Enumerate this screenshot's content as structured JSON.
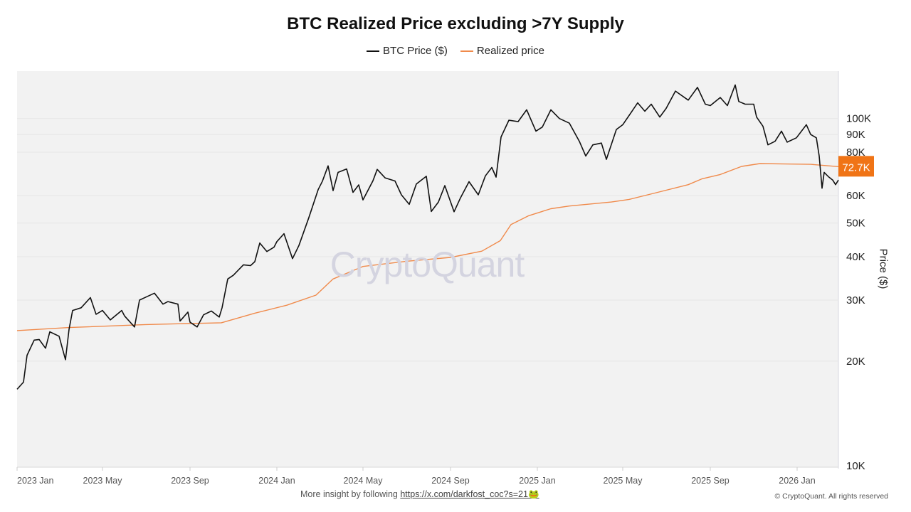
{
  "chart_data": {
    "type": "line",
    "title": "BTC Realized Price excluding >7Y Supply",
    "ylabel": "Price ($)",
    "yscale": "log",
    "ylim": [
      9900,
      137000
    ],
    "xlim": [
      "2023-01-01",
      "2026-02-28"
    ],
    "grid": "horizontal",
    "legend_position": "top",
    "y_ticks": [
      {
        "value": 10000,
        "label": "10K"
      },
      {
        "value": 20000,
        "label": "20K"
      },
      {
        "value": 30000,
        "label": "30K"
      },
      {
        "value": 40000,
        "label": "40K"
      },
      {
        "value": 50000,
        "label": "50K"
      },
      {
        "value": 60000,
        "label": "60K"
      },
      {
        "value": 80000,
        "label": "80K"
      },
      {
        "value": 90000,
        "label": "90K"
      },
      {
        "value": 100000,
        "label": "100K"
      }
    ],
    "x_ticks": [
      {
        "date": "2023-01-01",
        "label": "2023 Jan"
      },
      {
        "date": "2023-05-01",
        "label": "2023 May"
      },
      {
        "date": "2023-09-01",
        "label": "2023 Sep"
      },
      {
        "date": "2024-01-01",
        "label": "2024 Jan"
      },
      {
        "date": "2024-05-01",
        "label": "2024 May"
      },
      {
        "date": "2024-09-01",
        "label": "2024 Sep"
      },
      {
        "date": "2025-01-01",
        "label": "2025 Jan"
      },
      {
        "date": "2025-05-01",
        "label": "2025 May"
      },
      {
        "date": "2025-09-01",
        "label": "2025 Sep"
      },
      {
        "date": "2026-01-01",
        "label": "2026 Jan"
      }
    ],
    "last_value_label": "72.7K",
    "series": [
      {
        "name": "BTC Price ($)",
        "color": "#111111",
        "points": [
          [
            "2023-01-01",
            16600
          ],
          [
            "2023-01-10",
            17400
          ],
          [
            "2023-01-15",
            20800
          ],
          [
            "2023-01-25",
            23000
          ],
          [
            "2023-02-01",
            23100
          ],
          [
            "2023-02-10",
            21800
          ],
          [
            "2023-02-16",
            24300
          ],
          [
            "2023-03-01",
            23600
          ],
          [
            "2023-03-10",
            20200
          ],
          [
            "2023-03-15",
            24700
          ],
          [
            "2023-03-20",
            28000
          ],
          [
            "2023-04-01",
            28500
          ],
          [
            "2023-04-14",
            30500
          ],
          [
            "2023-04-22",
            27300
          ],
          [
            "2023-05-01",
            28000
          ],
          [
            "2023-05-12",
            26300
          ],
          [
            "2023-05-28",
            28000
          ],
          [
            "2023-06-01",
            27000
          ],
          [
            "2023-06-15",
            25100
          ],
          [
            "2023-06-22",
            30000
          ],
          [
            "2023-07-01",
            30600
          ],
          [
            "2023-07-13",
            31400
          ],
          [
            "2023-07-25",
            29200
          ],
          [
            "2023-08-01",
            29700
          ],
          [
            "2023-08-15",
            29200
          ],
          [
            "2023-08-18",
            26100
          ],
          [
            "2023-08-29",
            27700
          ],
          [
            "2023-09-01",
            25900
          ],
          [
            "2023-09-11",
            25100
          ],
          [
            "2023-09-20",
            27200
          ],
          [
            "2023-10-01",
            27900
          ],
          [
            "2023-10-12",
            26800
          ],
          [
            "2023-10-16",
            28500
          ],
          [
            "2023-10-24",
            34500
          ],
          [
            "2023-11-01",
            35400
          ],
          [
            "2023-11-15",
            37900
          ],
          [
            "2023-11-25",
            37700
          ],
          [
            "2023-12-01",
            38700
          ],
          [
            "2023-12-08",
            43800
          ],
          [
            "2023-12-18",
            41400
          ],
          [
            "2023-12-28",
            42600
          ],
          [
            "2024-01-01",
            44200
          ],
          [
            "2024-01-11",
            46600
          ],
          [
            "2024-01-23",
            39500
          ],
          [
            "2024-02-01",
            43100
          ],
          [
            "2024-02-15",
            51900
          ],
          [
            "2024-02-28",
            62400
          ],
          [
            "2024-03-05",
            66000
          ],
          [
            "2024-03-13",
            73100
          ],
          [
            "2024-03-20",
            62000
          ],
          [
            "2024-03-27",
            70000
          ],
          [
            "2024-04-08",
            71600
          ],
          [
            "2024-04-17",
            61300
          ],
          [
            "2024-04-25",
            64400
          ],
          [
            "2024-05-01",
            58300
          ],
          [
            "2024-05-15",
            66200
          ],
          [
            "2024-05-21",
            71400
          ],
          [
            "2024-06-01",
            67500
          ],
          [
            "2024-06-15",
            66100
          ],
          [
            "2024-06-24",
            60300
          ],
          [
            "2024-07-05",
            56600
          ],
          [
            "2024-07-15",
            64800
          ],
          [
            "2024-07-29",
            68200
          ],
          [
            "2024-08-05",
            54000
          ],
          [
            "2024-08-15",
            57500
          ],
          [
            "2024-08-24",
            64100
          ],
          [
            "2024-09-06",
            53900
          ],
          [
            "2024-09-15",
            59100
          ],
          [
            "2024-09-27",
            65800
          ],
          [
            "2024-10-10",
            60300
          ],
          [
            "2024-10-20",
            68400
          ],
          [
            "2024-10-29",
            72300
          ],
          [
            "2024-11-04",
            67800
          ],
          [
            "2024-11-11",
            88500
          ],
          [
            "2024-11-22",
            98900
          ],
          [
            "2024-12-05",
            98000
          ],
          [
            "2024-12-17",
            106000
          ],
          [
            "2024-12-30",
            92000
          ],
          [
            "2025-01-08",
            94500
          ],
          [
            "2025-01-20",
            106000
          ],
          [
            "2025-02-01",
            100000
          ],
          [
            "2025-02-15",
            97000
          ],
          [
            "2025-03-01",
            86000
          ],
          [
            "2025-03-10",
            78000
          ],
          [
            "2025-03-20",
            84000
          ],
          [
            "2025-04-01",
            85000
          ],
          [
            "2025-04-08",
            76300
          ],
          [
            "2025-04-22",
            93000
          ],
          [
            "2025-05-01",
            96000
          ],
          [
            "2025-05-22",
            111000
          ],
          [
            "2025-06-01",
            105000
          ],
          [
            "2025-06-10",
            110000
          ],
          [
            "2025-06-22",
            101000
          ],
          [
            "2025-07-01",
            107000
          ],
          [
            "2025-07-14",
            120000
          ],
          [
            "2025-08-01",
            113000
          ],
          [
            "2025-08-14",
            123000
          ],
          [
            "2025-08-25",
            110000
          ],
          [
            "2025-09-01",
            109000
          ],
          [
            "2025-09-15",
            115000
          ],
          [
            "2025-09-25",
            109000
          ],
          [
            "2025-10-06",
            125000
          ],
          [
            "2025-10-11",
            112000
          ],
          [
            "2025-10-20",
            110000
          ],
          [
            "2025-11-01",
            110000
          ],
          [
            "2025-11-05",
            101000
          ],
          [
            "2025-11-14",
            95000
          ],
          [
            "2025-11-21",
            84000
          ],
          [
            "2025-12-01",
            86000
          ],
          [
            "2025-12-10",
            92000
          ],
          [
            "2025-12-18",
            85500
          ],
          [
            "2025-12-31",
            88000
          ],
          [
            "2026-01-14",
            96000
          ],
          [
            "2026-01-20",
            90000
          ],
          [
            "2026-01-28",
            88000
          ],
          [
            "2026-02-01",
            78000
          ],
          [
            "2026-02-05",
            63000
          ],
          [
            "2026-02-08",
            70000
          ],
          [
            "2026-02-14",
            68000
          ],
          [
            "2026-02-20",
            66500
          ],
          [
            "2026-02-24",
            64500
          ],
          [
            "2026-02-28",
            66500
          ]
        ]
      },
      {
        "name": "Realized price",
        "color": "#f08a4b",
        "points": [
          [
            "2023-01-01",
            24500
          ],
          [
            "2023-03-15",
            25000
          ],
          [
            "2023-07-01",
            25500
          ],
          [
            "2023-10-15",
            25800
          ],
          [
            "2023-12-01",
            27500
          ],
          [
            "2024-01-15",
            29000
          ],
          [
            "2024-02-25",
            31000
          ],
          [
            "2024-03-20",
            34500
          ],
          [
            "2024-05-01",
            37500
          ],
          [
            "2024-07-01",
            38800
          ],
          [
            "2024-09-01",
            39800
          ],
          [
            "2024-10-15",
            41500
          ],
          [
            "2024-11-10",
            44500
          ],
          [
            "2024-11-25",
            49500
          ],
          [
            "2024-12-20",
            52500
          ],
          [
            "2025-01-20",
            55000
          ],
          [
            "2025-02-15",
            56000
          ],
          [
            "2025-04-15",
            57500
          ],
          [
            "2025-05-10",
            58500
          ],
          [
            "2025-06-15",
            61000
          ],
          [
            "2025-08-01",
            64500
          ],
          [
            "2025-08-20",
            67000
          ],
          [
            "2025-09-15",
            69000
          ],
          [
            "2025-10-15",
            72800
          ],
          [
            "2025-11-10",
            74200
          ],
          [
            "2025-12-15",
            74000
          ],
          [
            "2026-01-20",
            73800
          ],
          [
            "2026-02-28",
            72700
          ]
        ]
      }
    ]
  },
  "watermark": "CryptoQuant",
  "footer": {
    "text": "More insight by following",
    "link": "https://x.com/darkfost_coc?s=21🐸",
    "copyright": "© CryptoQuant. All rights reserved"
  }
}
